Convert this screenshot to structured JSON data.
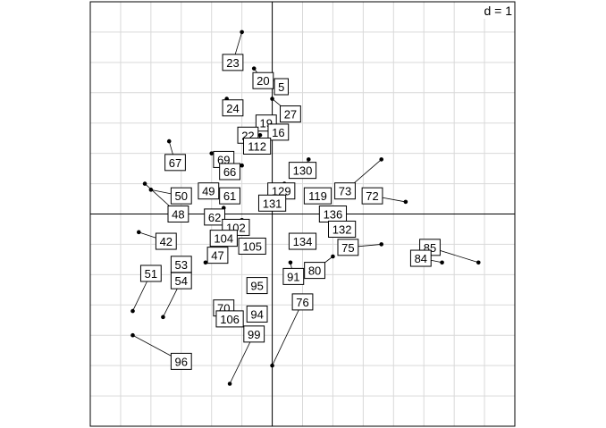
{
  "chart_data": {
    "type": "scatter",
    "description_style": "ade4 s.match: arrows from points to labelled positions",
    "scale_label": "d = 1",
    "grid": true,
    "xlim": [
      -3,
      4
    ],
    "ylim": [
      -3.5,
      3.5
    ],
    "grid_step": 0.5,
    "points": [
      {
        "label": "23",
        "from": [
          -0.5,
          3.0
        ],
        "to": [
          -0.65,
          2.5
        ]
      },
      {
        "label": "20",
        "from": [
          -0.3,
          2.4
        ],
        "to": [
          -0.15,
          2.2
        ]
      },
      {
        "label": "5",
        "from": [
          -0.1,
          2.3
        ],
        "to": [
          0.15,
          2.1
        ]
      },
      {
        "label": "24",
        "from": [
          -0.75,
          1.9
        ],
        "to": [
          -0.65,
          1.75
        ]
      },
      {
        "label": "27",
        "from": [
          0.0,
          1.9
        ],
        "to": [
          0.3,
          1.65
        ]
      },
      {
        "label": "19",
        "from": [
          -0.1,
          1.6
        ],
        "to": [
          -0.1,
          1.5
        ]
      },
      {
        "label": "22",
        "from": [
          -0.4,
          1.4
        ],
        "to": [
          -0.4,
          1.3
        ]
      },
      {
        "label": "16",
        "from": [
          0.2,
          1.4
        ],
        "to": [
          0.1,
          1.35
        ]
      },
      {
        "label": "112",
        "from": [
          -0.2,
          1.3
        ],
        "to": [
          -0.25,
          1.12
        ]
      },
      {
        "label": "69",
        "from": [
          -1.0,
          1.0
        ],
        "to": [
          -0.8,
          0.9
        ]
      },
      {
        "label": "67",
        "from": [
          -1.7,
          1.2
        ],
        "to": [
          -1.6,
          0.85
        ]
      },
      {
        "label": "66",
        "from": [
          -0.5,
          0.8
        ],
        "to": [
          -0.7,
          0.7
        ]
      },
      {
        "label": "130",
        "from": [
          0.6,
          0.9
        ],
        "to": [
          0.5,
          0.72
        ]
      },
      {
        "label": "50",
        "from": [
          -2.0,
          0.4
        ],
        "to": [
          -1.5,
          0.3
        ]
      },
      {
        "label": "49",
        "from": [
          -1.0,
          0.4
        ],
        "to": [
          -1.05,
          0.38
        ]
      },
      {
        "label": "61",
        "from": [
          -0.7,
          0.4
        ],
        "to": [
          -0.7,
          0.3
        ]
      },
      {
        "label": "129",
        "from": [
          0.2,
          0.5
        ],
        "to": [
          0.15,
          0.38
        ]
      },
      {
        "label": "131",
        "from": [
          0.0,
          0.3
        ],
        "to": [
          0.0,
          0.18
        ]
      },
      {
        "label": "119",
        "from": [
          0.8,
          0.3
        ],
        "to": [
          0.75,
          0.3
        ]
      },
      {
        "label": "73",
        "from": [
          1.8,
          0.9
        ],
        "to": [
          1.2,
          0.38
        ]
      },
      {
        "label": "72",
        "from": [
          2.2,
          0.2
        ],
        "to": [
          1.65,
          0.3
        ]
      },
      {
        "label": "48",
        "from": [
          -2.1,
          0.5
        ],
        "to": [
          -1.55,
          0.0
        ]
      },
      {
        "label": "62",
        "from": [
          -0.8,
          0.1
        ],
        "to": [
          -0.95,
          -0.05
        ]
      },
      {
        "label": "136",
        "from": [
          1.0,
          -0.1
        ],
        "to": [
          1.0,
          0.0
        ]
      },
      {
        "label": "132",
        "from": [
          1.2,
          -0.2
        ],
        "to": [
          1.15,
          -0.25
        ]
      },
      {
        "label": "102",
        "from": [
          -0.5,
          -0.1
        ],
        "to": [
          -0.6,
          -0.22
        ]
      },
      {
        "label": "42",
        "from": [
          -2.2,
          -0.3
        ],
        "to": [
          -1.75,
          -0.45
        ]
      },
      {
        "label": "104",
        "from": [
          -0.7,
          -0.3
        ],
        "to": [
          -0.8,
          -0.4
        ]
      },
      {
        "label": "105",
        "from": [
          -0.2,
          -0.5
        ],
        "to": [
          -0.33,
          -0.53
        ]
      },
      {
        "label": "134",
        "from": [
          0.4,
          -0.4
        ],
        "to": [
          0.5,
          -0.45
        ]
      },
      {
        "label": "75",
        "from": [
          1.8,
          -0.5
        ],
        "to": [
          1.25,
          -0.55
        ]
      },
      {
        "label": "85",
        "from": [
          3.4,
          -0.8
        ],
        "to": [
          2.6,
          -0.55
        ]
      },
      {
        "label": "84",
        "from": [
          2.8,
          -0.8
        ],
        "to": [
          2.45,
          -0.73
        ]
      },
      {
        "label": "47",
        "from": [
          -1.1,
          -0.8
        ],
        "to": [
          -0.9,
          -0.68
        ]
      },
      {
        "label": "53",
        "from": [
          -1.5,
          -0.8
        ],
        "to": [
          -1.5,
          -0.83
        ]
      },
      {
        "label": "51",
        "from": [
          -2.3,
          -1.6
        ],
        "to": [
          -2.0,
          -0.98
        ]
      },
      {
        "label": "54",
        "from": [
          -1.8,
          -1.7
        ],
        "to": [
          -1.5,
          -1.1
        ]
      },
      {
        "label": "80",
        "from": [
          1.0,
          -0.7
        ],
        "to": [
          0.7,
          -0.93
        ]
      },
      {
        "label": "91",
        "from": [
          0.3,
          -0.8
        ],
        "to": [
          0.35,
          -1.03
        ]
      },
      {
        "label": "95",
        "from": [
          -0.3,
          -1.1
        ],
        "to": [
          -0.25,
          -1.18
        ]
      },
      {
        "label": "76",
        "from": [
          0.0,
          -2.5
        ],
        "to": [
          0.5,
          -1.45
        ]
      },
      {
        "label": "70",
        "from": [
          -0.9,
          -1.6
        ],
        "to": [
          -0.8,
          -1.55
        ]
      },
      {
        "label": "106",
        "from": [
          -0.8,
          -1.7
        ],
        "to": [
          -0.7,
          -1.73
        ]
      },
      {
        "label": "94",
        "from": [
          -0.3,
          -1.6
        ],
        "to": [
          -0.25,
          -1.65
        ]
      },
      {
        "label": "99",
        "from": [
          -0.7,
          -2.8
        ],
        "to": [
          -0.3,
          -1.98
        ]
      },
      {
        "label": "96",
        "from": [
          -2.3,
          -2.0
        ],
        "to": [
          -1.5,
          -2.43
        ]
      }
    ]
  }
}
